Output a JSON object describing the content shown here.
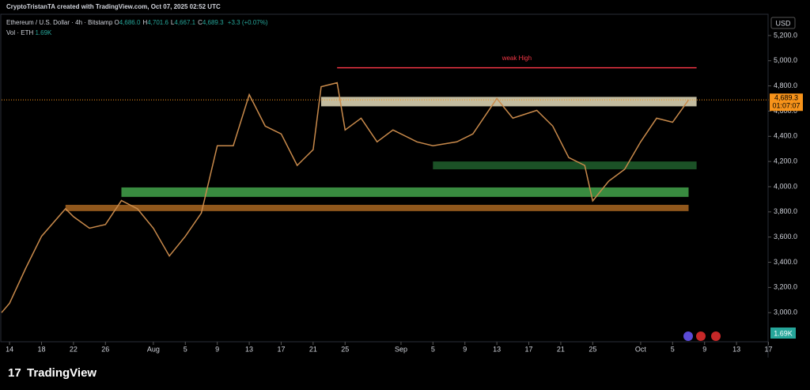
{
  "header": {
    "credit": "CryptoTristanTA created with TradingView.com, Oct 07, 2025 02:52 UTC",
    "symbol": "Ethereum / U.S. Dollar · 4h · Bitstamp",
    "ohlc": [
      {
        "key": "O",
        "value": "4,686.0"
      },
      {
        "key": "H",
        "value": "4,701.6"
      },
      {
        "key": "L",
        "value": "4,667.1"
      },
      {
        "key": "C",
        "value": "4,689.3"
      }
    ],
    "change": "+3.3 (+0.07%)",
    "volume_label": "Vol · ETH",
    "volume_value": "1.69K"
  },
  "chart_data": {
    "type": "line",
    "currency": "USD",
    "x": [
      "2025-07-13",
      "2025-07-14",
      "2025-07-16",
      "2025-07-18",
      "2025-07-21",
      "2025-07-22",
      "2025-07-24",
      "2025-07-26",
      "2025-07-28",
      "2025-07-30",
      "2025-08-01",
      "2025-08-03",
      "2025-08-05",
      "2025-08-07",
      "2025-08-09",
      "2025-08-11",
      "2025-08-13",
      "2025-08-15",
      "2025-08-17",
      "2025-08-19",
      "2025-08-21",
      "2025-08-22",
      "2025-08-24",
      "2025-08-25",
      "2025-08-27",
      "2025-08-29",
      "2025-08-31",
      "2025-09-03",
      "2025-09-05",
      "2025-09-08",
      "2025-09-10",
      "2025-09-13",
      "2025-09-15",
      "2025-09-18",
      "2025-09-20",
      "2025-09-22",
      "2025-09-24",
      "2025-09-25",
      "2025-09-27",
      "2025-09-29",
      "2025-10-01",
      "2025-10-03",
      "2025-10-05",
      "2025-10-07"
    ],
    "series": [
      {
        "name": "ETHUSD",
        "color": "#c98a4b",
        "values": [
          3000,
          3075,
          3350,
          3606,
          3825,
          3762,
          3670,
          3700,
          3890,
          3825,
          3670,
          3450,
          3606,
          3790,
          4325,
          4325,
          4731,
          4481,
          4419,
          4169,
          4294,
          4794,
          4825,
          4450,
          4544,
          4356,
          4450,
          4356,
          4325,
          4356,
          4419,
          4700,
          4544,
          4606,
          4481,
          4231,
          4169,
          3887,
          4044,
          4138,
          4356,
          4544,
          4512,
          4689
        ]
      }
    ],
    "xlim": [
      "2025-07-13",
      "2025-10-17"
    ],
    "ylim": [
      2769,
      5369
    ],
    "yticks": [
      {
        "value": 3000,
        "label": "3,000.0"
      },
      {
        "value": 3200,
        "label": "3,200.0"
      },
      {
        "value": 3400,
        "label": "3,400.0"
      },
      {
        "value": 3600,
        "label": "3,600.0"
      },
      {
        "value": 3800,
        "label": "3,800.0"
      },
      {
        "value": 4000,
        "label": "4,000.0"
      },
      {
        "value": 4200,
        "label": "4,200.0"
      },
      {
        "value": 4400,
        "label": "4,400.0"
      },
      {
        "value": 4600,
        "label": "4,600.0"
      },
      {
        "value": 4800,
        "label": "4,800.0"
      },
      {
        "value": 5000,
        "label": "5,000.0"
      },
      {
        "value": 5200,
        "label": "5,200.0"
      }
    ],
    "xticks": [
      {
        "value": "2025-07-14",
        "label": "14"
      },
      {
        "value": "2025-07-18",
        "label": "18"
      },
      {
        "value": "2025-07-22",
        "label": "22"
      },
      {
        "value": "2025-07-26",
        "label": "26"
      },
      {
        "value": "2025-08-01",
        "label": "Aug"
      },
      {
        "value": "2025-08-05",
        "label": "5"
      },
      {
        "value": "2025-08-09",
        "label": "9"
      },
      {
        "value": "2025-08-13",
        "label": "13"
      },
      {
        "value": "2025-08-17",
        "label": "17"
      },
      {
        "value": "2025-08-21",
        "label": "21"
      },
      {
        "value": "2025-08-25",
        "label": "25"
      },
      {
        "value": "2025-09-01",
        "label": "Sep"
      },
      {
        "value": "2025-09-05",
        "label": "5"
      },
      {
        "value": "2025-09-09",
        "label": "9"
      },
      {
        "value": "2025-09-13",
        "label": "13"
      },
      {
        "value": "2025-09-17",
        "label": "17"
      },
      {
        "value": "2025-09-21",
        "label": "21"
      },
      {
        "value": "2025-09-25",
        "label": "25"
      },
      {
        "value": "2025-10-01",
        "label": "Oct"
      },
      {
        "value": "2025-10-05",
        "label": "5"
      },
      {
        "value": "2025-10-09",
        "label": "9"
      },
      {
        "value": "2025-10-13",
        "label": "13"
      },
      {
        "value": "2025-10-17",
        "label": "17"
      }
    ],
    "grid": false,
    "zones": [
      {
        "from": "2025-08-22",
        "to": "2025-10-08",
        "low": 4638,
        "high": 4713,
        "color": "#d8d0b0"
      },
      {
        "from": "2025-09-05",
        "to": "2025-10-08",
        "low": 4138,
        "high": 4200,
        "color": "#1e5a2a"
      },
      {
        "from": "2025-07-28",
        "to": "2025-10-07",
        "low": 3919,
        "high": 3994,
        "color": "#3f9a47"
      },
      {
        "from": "2025-07-21",
        "to": "2025-10-07",
        "low": 3806,
        "high": 3856,
        "color": "#a0611f"
      }
    ],
    "level": {
      "label": "weak High",
      "value": 4944,
      "from": "2025-08-24",
      "to": "2025-10-08",
      "color": "#f23645"
    },
    "last_price": {
      "value": 4689.3,
      "label": "4,689.3",
      "countdown": "01:07:07",
      "color": "#f7931a"
    },
    "brand": "TradingView"
  }
}
